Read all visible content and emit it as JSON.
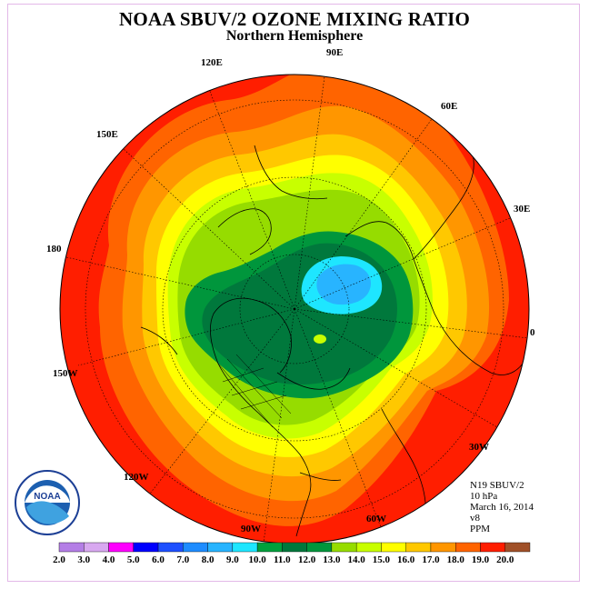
{
  "title": "NOAA SBUV/2 OZONE MIXING RATIO",
  "subtitle": "Northern Hemisphere",
  "longitudes": {
    "lon_120e": "120E",
    "lon_90e": "90E",
    "lon_60e": "60E",
    "lon_30e": "30E",
    "lon_150e": "150E",
    "lon_180": "180",
    "lon_0": "0",
    "lon_150w": "150W",
    "lon_120w": "120W",
    "lon_90w": "90W",
    "lon_60w": "60W",
    "lon_30w": "30W"
  },
  "info": {
    "instrument": "N19 SBUV/2",
    "level": "10 hPa",
    "date": "March 16, 2014",
    "version": "v8",
    "units": "PPM"
  },
  "colorbar": {
    "ticks": [
      "2.0",
      "3.0",
      "4.0",
      "5.0",
      "6.0",
      "7.0",
      "8.0",
      "9.0",
      "10.0",
      "11.0",
      "12.0",
      "13.0",
      "14.0",
      "15.0",
      "16.0",
      "17.0",
      "18.0",
      "19.0",
      "20.0"
    ],
    "colors": [
      "#b47ee6",
      "#d8a8f0",
      "#ff00ff",
      "#0000ff",
      "#1e50ff",
      "#1e8cff",
      "#28b4ff",
      "#1ee6ff",
      "#00a03c",
      "#00783c",
      "#00963c",
      "#96dc00",
      "#c8ff00",
      "#ffff00",
      "#ffc800",
      "#ff9600",
      "#ff6400",
      "#ff1e00",
      "#a05028"
    ]
  },
  "logo": {
    "text": "NOAA",
    "ring_text": "NATIONAL OCEANIC AND ATMOSPHERIC ADMINISTRATION · U.S. DEPARTMENT OF COMMERCE"
  },
  "colors": {
    "ocean_red": "#ff1e00",
    "orange": "#ff6400",
    "light_orange": "#ff9600",
    "amber": "#ffc800",
    "yellow": "#ffff00",
    "lime": "#c8ff00",
    "green": "#96dc00",
    "mid_green": "#00963c",
    "dark_green": "#00783c",
    "cyan": "#1ee6ff",
    "blue": "#28b4ff"
  }
}
